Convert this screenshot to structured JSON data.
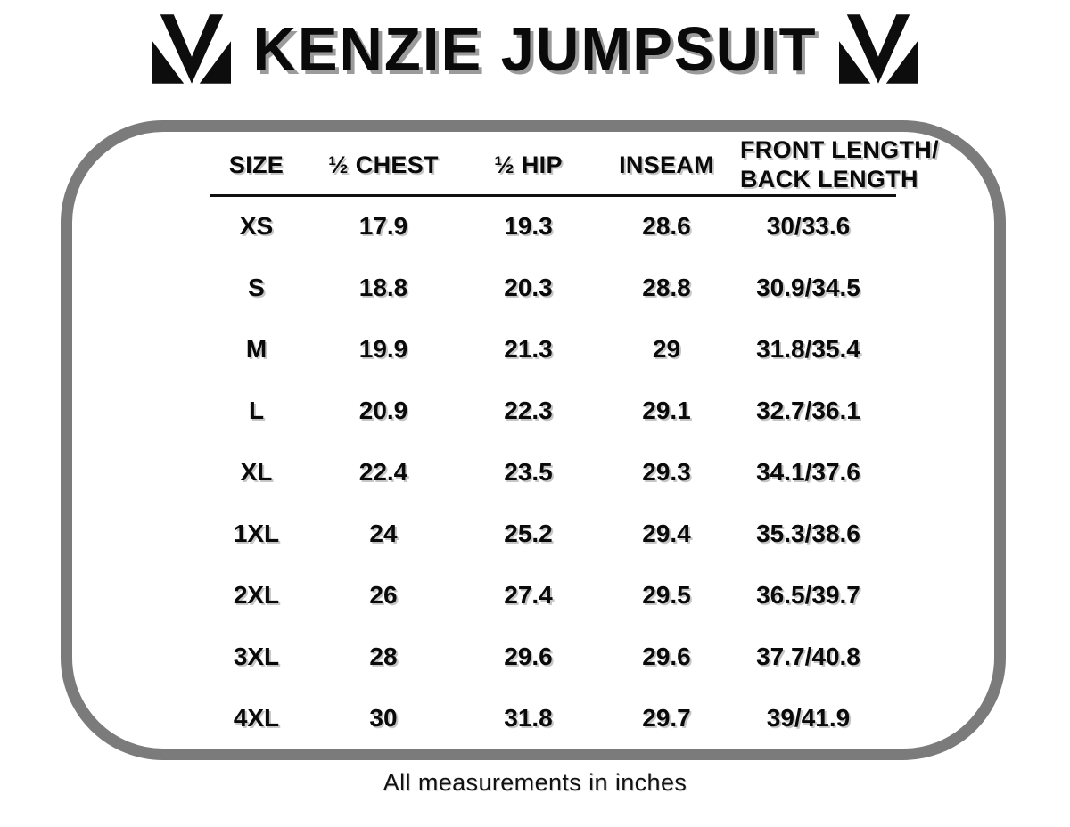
{
  "header": {
    "title": "KENZIE JUMPSUIT",
    "left_logo": "brand-m-logo",
    "right_logo": "brand-m-logo"
  },
  "table": {
    "columns": [
      {
        "lines": [
          "SIZE"
        ]
      },
      {
        "lines": [
          "½ CHEST"
        ]
      },
      {
        "lines": [
          "½ HIP"
        ]
      },
      {
        "lines": [
          "INSEAM"
        ]
      },
      {
        "lines": [
          "FRONT LENGTH/",
          "BACK LENGTH"
        ]
      }
    ]
  },
  "footer": {
    "note": "All measurements in inches"
  },
  "colors": {
    "ink": "#0a0a0a",
    "title_shadow": "#9b9b9b",
    "cell_shadow": "#c6c6c6",
    "frame": "#7b7b7b",
    "background": "#ffffff"
  },
  "chart_data": {
    "type": "table",
    "title": "KENZIE JUMPSUIT",
    "columns": [
      "SIZE",
      "½ CHEST",
      "½ HIP",
      "INSEAM",
      "FRONT LENGTH/ BACK LENGTH"
    ],
    "rows": [
      [
        "XS",
        "17.9",
        "19.3",
        "28.6",
        "30/33.6"
      ],
      [
        "S",
        "18.8",
        "20.3",
        "28.8",
        "30.9/34.5"
      ],
      [
        "M",
        "19.9",
        "21.3",
        "29",
        "31.8/35.4"
      ],
      [
        "L",
        "20.9",
        "22.3",
        "29.1",
        "32.7/36.1"
      ],
      [
        "XL",
        "22.4",
        "23.5",
        "29.3",
        "34.1/37.6"
      ],
      [
        "1XL",
        "24",
        "25.2",
        "29.4",
        "35.3/38.6"
      ],
      [
        "2XL",
        "26",
        "27.4",
        "29.5",
        "36.5/39.7"
      ],
      [
        "3XL",
        "28",
        "29.6",
        "29.6",
        "37.7/40.8"
      ],
      [
        "4XL",
        "30",
        "31.8",
        "29.7",
        "39/41.9"
      ]
    ],
    "note": "All measurements in inches"
  }
}
